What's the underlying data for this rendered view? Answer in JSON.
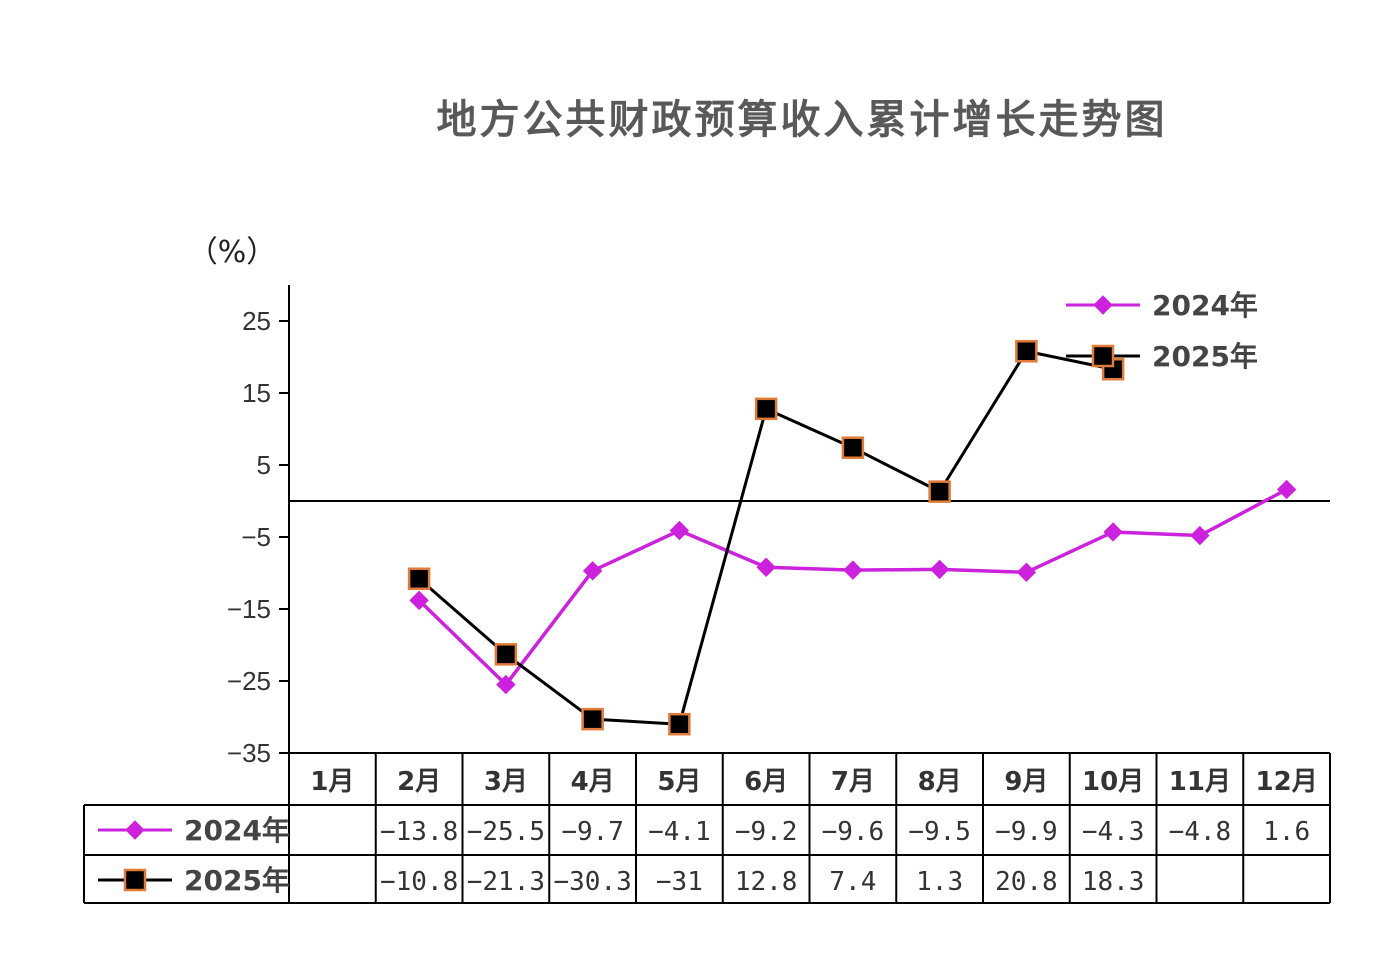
{
  "chart_data": {
    "type": "line",
    "title": "地方公共财政预算收入累计增长走势图",
    "ylabel": "（%）",
    "xlabel": "",
    "categories": [
      "1月",
      "2月",
      "3月",
      "4月",
      "5月",
      "6月",
      "7月",
      "8月",
      "9月",
      "10月",
      "11月",
      "12月"
    ],
    "yticks": [
      25,
      15,
      5,
      -5,
      -15,
      -25,
      -35
    ],
    "ylim": [
      -35,
      30
    ],
    "grid": false,
    "legend_position": "top-right",
    "data_table": true,
    "series": [
      {
        "name": "2024年",
        "color": "#cc22dd",
        "marker": "diamond",
        "values": [
          null,
          -13.8,
          -25.5,
          -9.7,
          -4.1,
          -9.2,
          -9.6,
          -9.5,
          -9.9,
          -4.3,
          -4.8,
          1.6
        ],
        "labels": [
          "",
          "-13.8",
          "-25.5",
          "-9.7",
          "-4.1",
          "-9.2",
          "-9.6",
          "-9.5",
          "-9.9",
          "-4.3",
          "-4.8",
          "1.6"
        ]
      },
      {
        "name": "2025年",
        "color": "#000000",
        "marker_edge": "#e07b39",
        "marker": "square",
        "values": [
          null,
          -10.8,
          -21.3,
          -30.3,
          -31,
          12.8,
          7.4,
          1.3,
          20.8,
          18.3,
          null,
          null
        ],
        "labels": [
          "",
          "-10.8",
          "-21.3",
          "-30.3",
          "-31",
          "12.8",
          "7.4",
          "1.3",
          "20.8",
          "18.3",
          "",
          ""
        ]
      }
    ]
  }
}
